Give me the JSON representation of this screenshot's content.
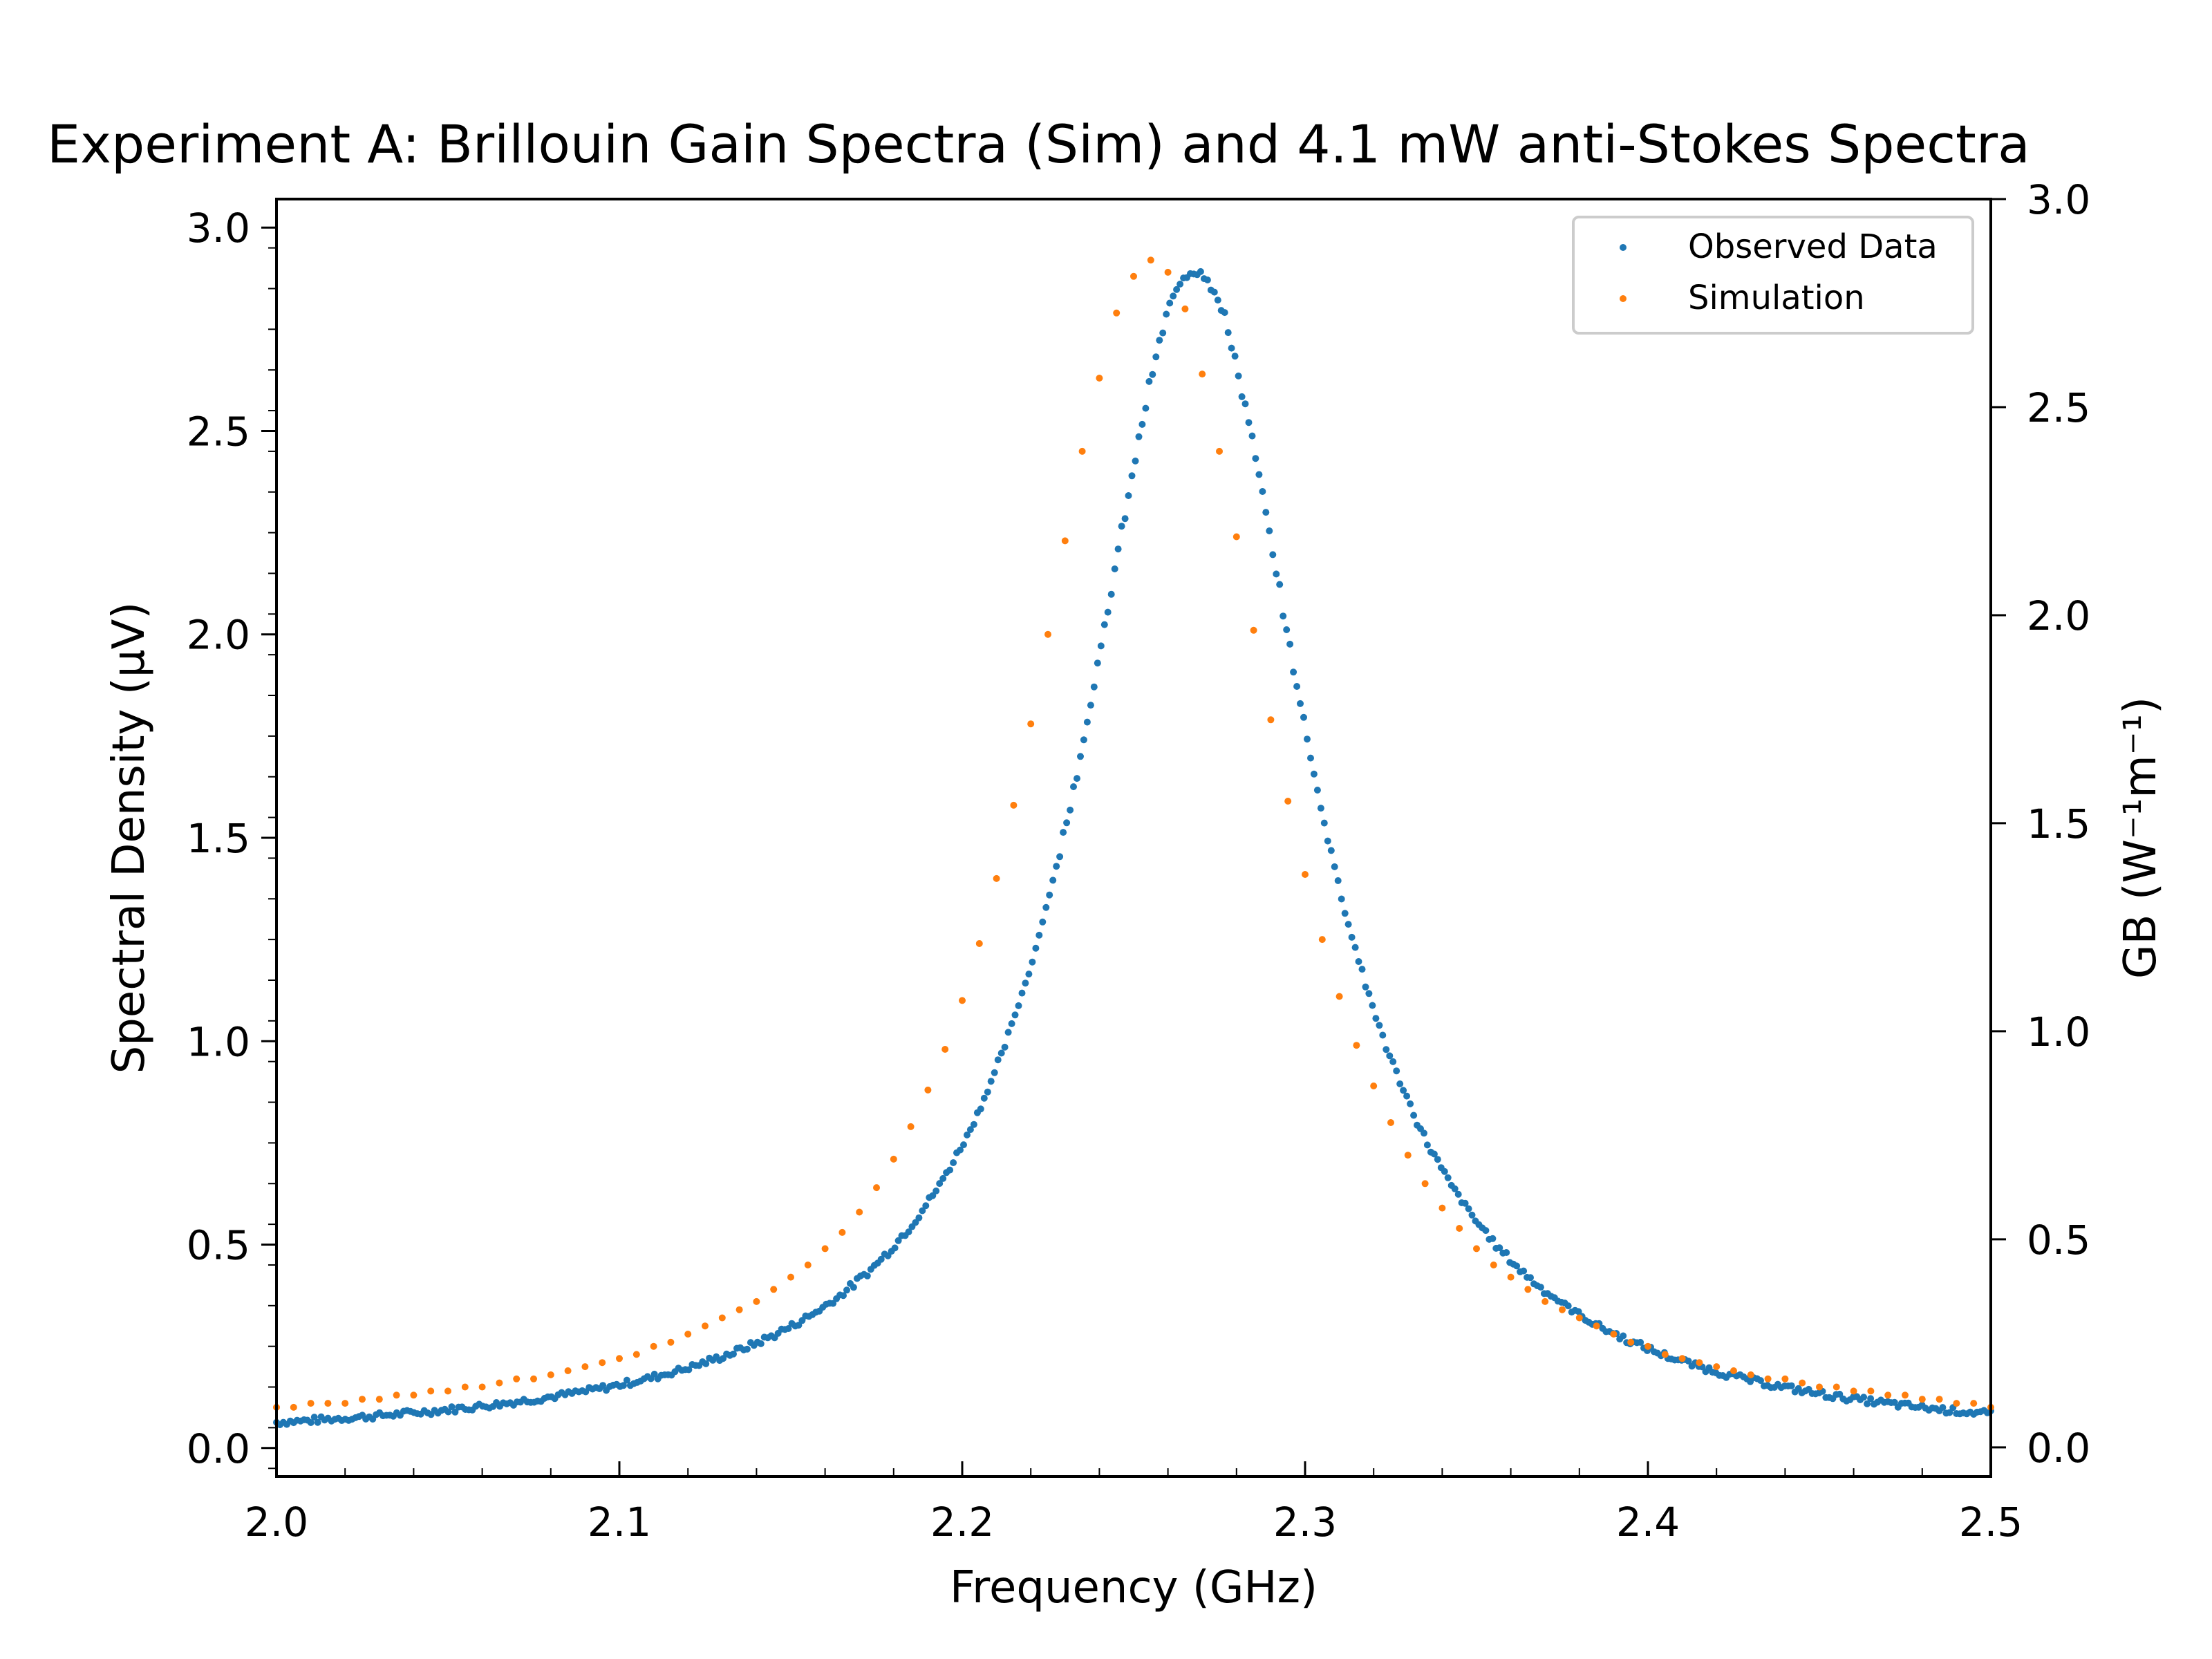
{
  "chart_data": {
    "type": "scatter",
    "title": "Experiment A: Brillouin Gain Spectra (Sim) and 4.1 mW anti-Stokes Spectra",
    "xlabel": "Frequency (GHz)",
    "ylabel": "Spectral Density (μV)",
    "y2label": "GB (W⁻¹m⁻¹)",
    "xlim": [
      2.0,
      2.5
    ],
    "ylim": [
      -0.07,
      3.07
    ],
    "y2lim": [
      -0.07,
      3.0
    ],
    "xticks": [
      "2.0",
      "2.1",
      "2.2",
      "2.3",
      "2.4",
      "2.5"
    ],
    "yticks": [
      "0.0",
      "0.5",
      "1.0",
      "1.5",
      "2.0",
      "2.5",
      "3.0"
    ],
    "y2ticks": [
      "0.0",
      "0.5",
      "1.0",
      "1.5",
      "2.0",
      "2.5",
      "3.0"
    ],
    "legend_position": "top-right",
    "series": [
      {
        "name": "Observed Data",
        "color": "#1f77b4",
        "model": {
          "peak_x": 2.268,
          "peak_y": 2.9,
          "hwhm": 0.04,
          "offset": 0.0,
          "noise": 0.008
        },
        "x_range": [
          2.0,
          2.5
        ],
        "n_points": 500
      },
      {
        "name": "Simulation",
        "color": "#ff7f0e",
        "x": [
          2.0,
          2.005,
          2.01,
          2.015,
          2.02,
          2.025,
          2.03,
          2.035,
          2.04,
          2.045,
          2.05,
          2.055,
          2.06,
          2.065,
          2.07,
          2.075,
          2.08,
          2.085,
          2.09,
          2.095,
          2.1,
          2.105,
          2.11,
          2.115,
          2.12,
          2.125,
          2.13,
          2.135,
          2.14,
          2.145,
          2.15,
          2.155,
          2.16,
          2.165,
          2.17,
          2.175,
          2.18,
          2.185,
          2.19,
          2.195,
          2.2,
          2.205,
          2.21,
          2.215,
          2.22,
          2.225,
          2.23,
          2.235,
          2.24,
          2.245,
          2.25,
          2.255,
          2.26,
          2.265,
          2.27,
          2.275,
          2.28,
          2.285,
          2.29,
          2.295,
          2.3,
          2.305,
          2.31,
          2.315,
          2.32,
          2.325,
          2.33,
          2.335,
          2.34,
          2.345,
          2.35,
          2.355,
          2.36,
          2.365,
          2.37,
          2.375,
          2.38,
          2.385,
          2.39,
          2.395,
          2.4,
          2.405,
          2.41,
          2.415,
          2.42,
          2.425,
          2.43,
          2.435,
          2.44,
          2.445,
          2.45,
          2.455,
          2.46,
          2.465,
          2.47,
          2.475,
          2.48,
          2.485,
          2.49,
          2.495,
          2.5
        ],
        "y": [
          0.1,
          0.1,
          0.11,
          0.11,
          0.11,
          0.12,
          0.12,
          0.13,
          0.13,
          0.14,
          0.14,
          0.15,
          0.15,
          0.16,
          0.17,
          0.17,
          0.18,
          0.19,
          0.2,
          0.21,
          0.22,
          0.23,
          0.25,
          0.26,
          0.28,
          0.3,
          0.32,
          0.34,
          0.36,
          0.39,
          0.42,
          0.45,
          0.49,
          0.53,
          0.58,
          0.64,
          0.71,
          0.79,
          0.88,
          0.98,
          1.1,
          1.24,
          1.4,
          1.58,
          1.78,
          2.0,
          2.23,
          2.45,
          2.63,
          2.79,
          2.88,
          2.92,
          2.89,
          2.8,
          2.64,
          2.45,
          2.24,
          2.01,
          1.79,
          1.59,
          1.41,
          1.25,
          1.11,
          0.99,
          0.89,
          0.8,
          0.72,
          0.65,
          0.59,
          0.54,
          0.49,
          0.45,
          0.42,
          0.39,
          0.36,
          0.34,
          0.32,
          0.3,
          0.28,
          0.26,
          0.25,
          0.23,
          0.22,
          0.21,
          0.2,
          0.19,
          0.18,
          0.17,
          0.17,
          0.16,
          0.15,
          0.15,
          0.14,
          0.14,
          0.13,
          0.13,
          0.12,
          0.12,
          0.11,
          0.11,
          0.1
        ]
      }
    ]
  }
}
